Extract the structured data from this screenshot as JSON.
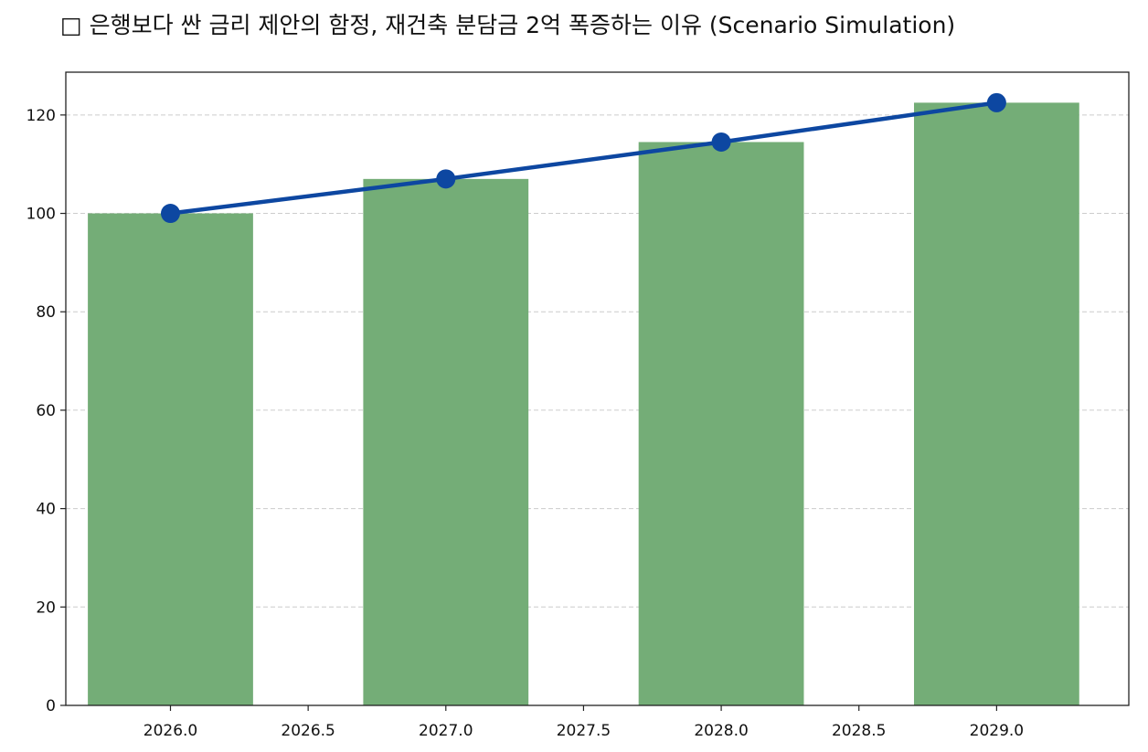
{
  "chart_data": {
    "type": "bar",
    "title": "□ 은행보다 싼 금리 제안의 함정, 재건축 분담금 2억 폭증하는 이유 (Scenario Simulation)",
    "x": [
      2026,
      2027,
      2028,
      2029
    ],
    "series": [
      {
        "kind": "bar",
        "values": [
          100.0,
          107.0,
          114.5,
          122.5
        ],
        "color": "#74ad77"
      },
      {
        "kind": "line",
        "values": [
          100.0,
          107.0,
          114.5,
          122.5
        ],
        "color": "#0d47a1",
        "marker": "circle"
      }
    ],
    "xlim": [
      2025.62,
      2029.48
    ],
    "ylim": [
      0,
      128.7
    ],
    "xticks": [
      "2026.0",
      "2026.5",
      "2027.0",
      "2027.5",
      "2028.0",
      "2028.5",
      "2029.0"
    ],
    "yticks": [
      "0",
      "20",
      "40",
      "60",
      "80",
      "100",
      "120"
    ],
    "xlabel": "",
    "ylabel": "",
    "grid": "y-dashed",
    "bar_width": 0.6
  }
}
